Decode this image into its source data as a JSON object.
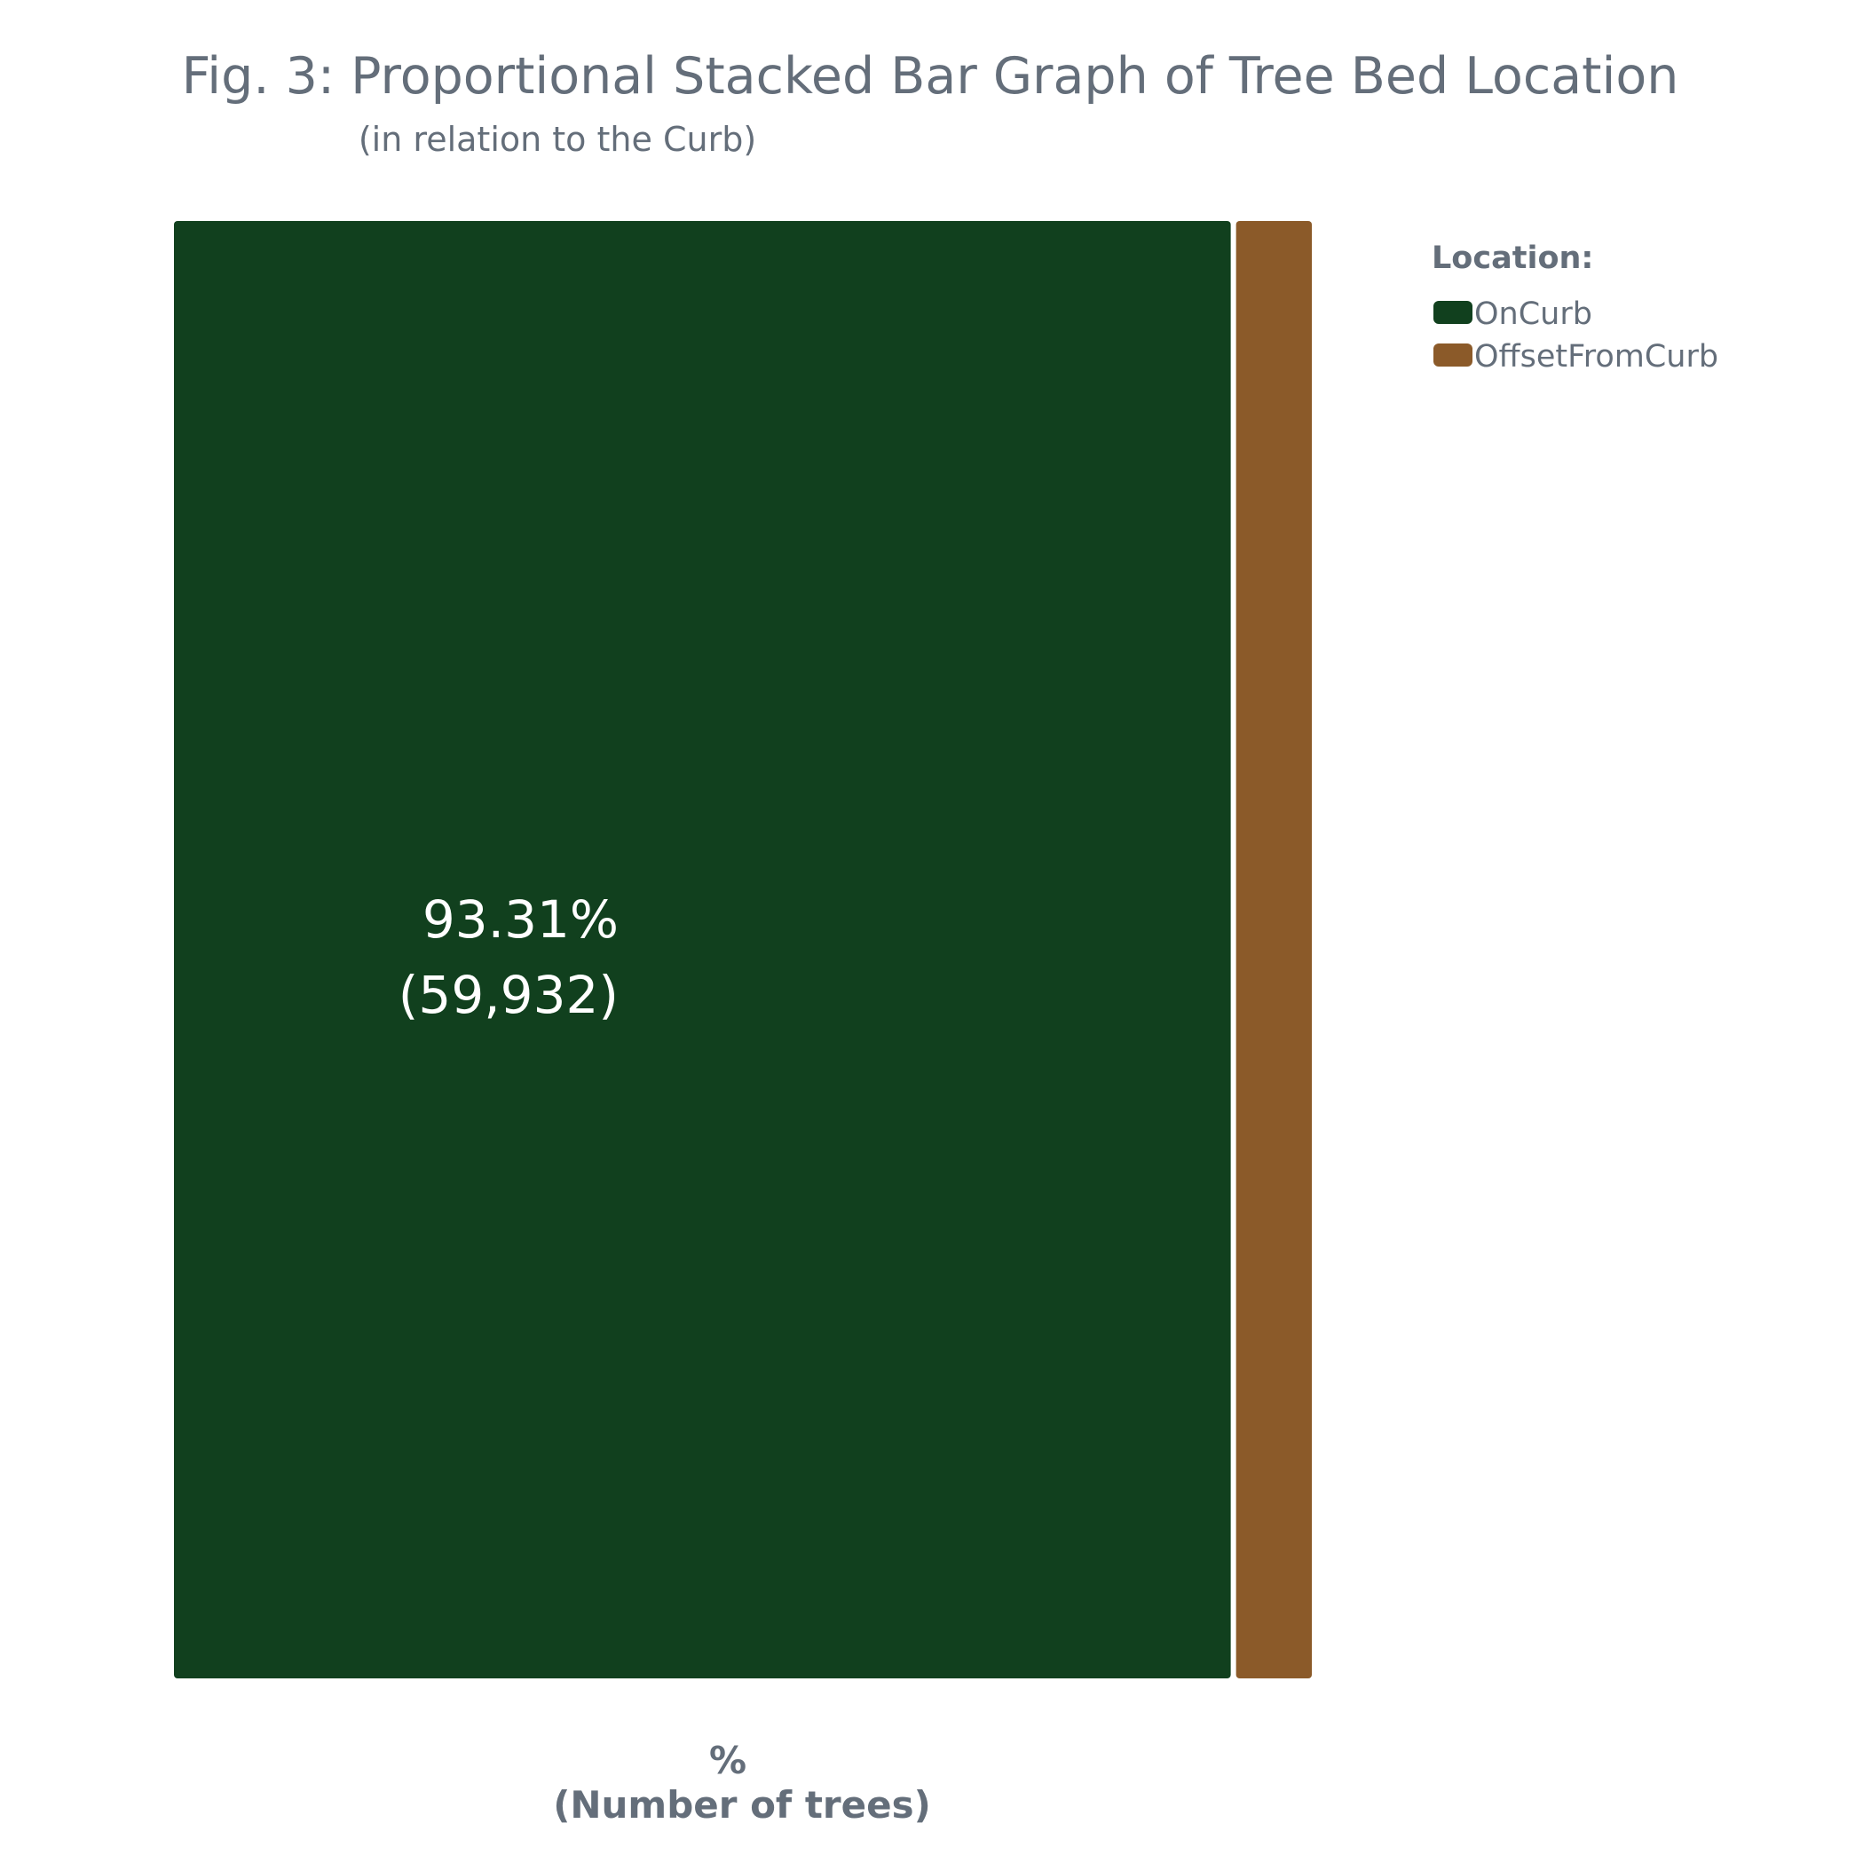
{
  "chart_data": {
    "type": "bar",
    "orientation": "horizontal-proportional",
    "title": "Fig. 3: Proportional Stacked Bar Graph of Tree Bed Location",
    "subtitle": "(in relation to the Curb)",
    "xlabel_line1": "%",
    "xlabel_line2": "(Number of trees)",
    "ylabel": "",
    "grid": false,
    "legend": {
      "title": "Location:",
      "placement": "top-right"
    },
    "series": [
      {
        "name": "OnCurb",
        "color": "#11401e",
        "percent": 93.31,
        "count": 59932,
        "percent_label": "93.31%",
        "count_label": "(59,932)"
      },
      {
        "name": "OffsetFromCurb",
        "color": "#8b5a29",
        "percent": 6.69,
        "count": null,
        "percent_label": "",
        "count_label": ""
      }
    ]
  }
}
